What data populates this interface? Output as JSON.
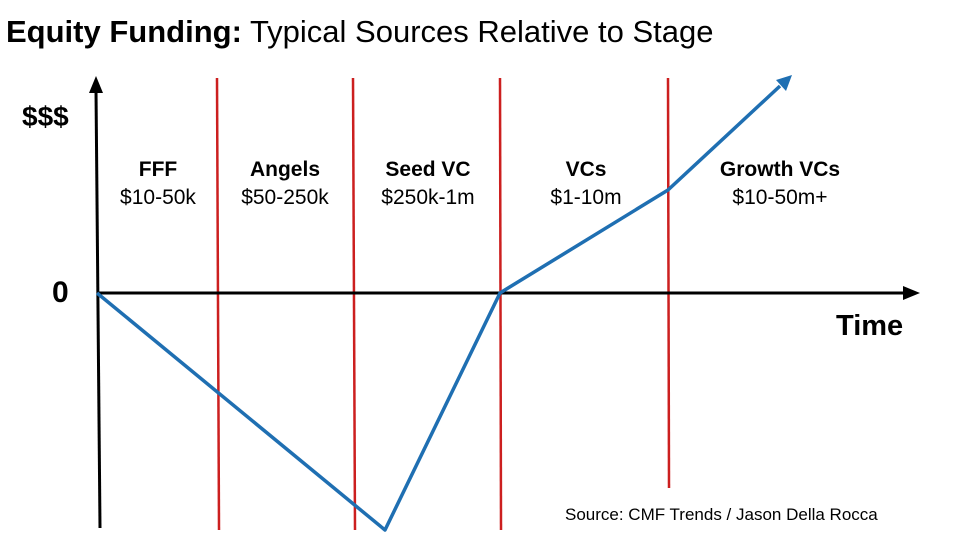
{
  "title": {
    "bold": "Equity Funding:",
    "rest": " Typical Sources Relative to Stage"
  },
  "y_axis_label": "$$$",
  "zero_label": "0",
  "x_axis_label": "Time",
  "stages": [
    {
      "name": "FFF",
      "amount": "$10-50k"
    },
    {
      "name": "Angels",
      "amount": "$50-250k"
    },
    {
      "name": "Seed VC",
      "amount": "$250k-1m"
    },
    {
      "name": "VCs",
      "amount": "$1-10m"
    },
    {
      "name": "Growth VCs",
      "amount": "$10-50m+"
    }
  ],
  "source": "Source: CMF Trends / Jason Della Rocca",
  "colors": {
    "curve": "#1f6fb2",
    "divider": "#cc1f1f",
    "axis": "#000000"
  }
}
